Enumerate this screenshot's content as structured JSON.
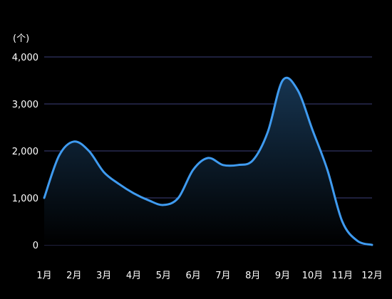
{
  "chart_data": {
    "type": "area",
    "unit_label": "(个)",
    "categories": [
      "1月",
      "2月",
      "3月",
      "4月",
      "5月",
      "6月",
      "7月",
      "8月",
      "9月",
      "10月",
      "11月",
      "12月"
    ],
    "x": [
      1,
      1.5,
      2,
      2.5,
      3,
      3.5,
      4,
      4.5,
      5,
      5.5,
      6,
      6.5,
      7,
      7.5,
      8,
      8.5,
      9,
      9.5,
      10,
      10.5,
      11,
      11.5,
      12
    ],
    "values": [
      1000,
      1900,
      2200,
      2000,
      1550,
      1300,
      1100,
      950,
      850,
      1000,
      1600,
      1850,
      1700,
      1700,
      1800,
      2400,
      3500,
      3300,
      2450,
      1600,
      500,
      90,
      0
    ],
    "yticks": [
      0,
      1000,
      2000,
      3000,
      4000
    ],
    "ytick_labels": [
      "0",
      "1,000",
      "2,000",
      "3,000",
      "4,000"
    ],
    "ylim": [
      0,
      4000
    ],
    "xlim": [
      1,
      12
    ],
    "grid": true,
    "colors": {
      "line": "#3f9bf0",
      "fill_top": "#163450",
      "fill_bottom": "#000000",
      "grid": "#3b3f7a",
      "text": "#ffffff",
      "background": "#000000"
    }
  }
}
